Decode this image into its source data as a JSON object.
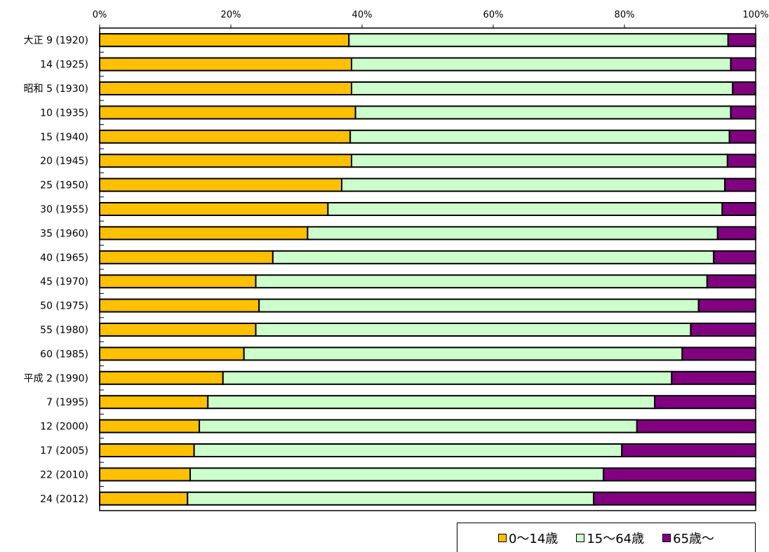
{
  "chart_data": {
    "type": "bar",
    "orientation": "horizontal",
    "stacked": "percent",
    "xlim": [
      0,
      100
    ],
    "x_ticks": [
      "0%",
      "20%",
      "40%",
      "60%",
      "80%",
      "100%"
    ],
    "categories": [
      "大正 9 (1920)",
      "14 (1925)",
      "昭和 5 (1930)",
      "10 (1935)",
      "15 (1940)",
      "20 (1945)",
      "25 (1950)",
      "30 (1955)",
      "35 (1960)",
      "40 (1965)",
      "45 (1970)",
      "50 (1975)",
      "55 (1980)",
      "60 (1985)",
      "平成 2 (1990)",
      "7 (1995)",
      "12 (2000)",
      "17 (2005)",
      "22 (2010)",
      "24 (2012)"
    ],
    "series": [
      {
        "name": "0～14歳",
        "color": "#FFC000",
        "values": [
          38.0,
          38.4,
          38.4,
          39.0,
          38.2,
          38.4,
          36.9,
          34.8,
          31.7,
          26.4,
          23.8,
          24.3,
          23.8,
          22.0,
          18.8,
          16.5,
          15.2,
          14.4,
          13.8,
          13.4
        ]
      },
      {
        "name": "15～64歳",
        "color": "#CCFFCC",
        "values": [
          57.8,
          57.8,
          58.1,
          57.2,
          57.8,
          57.3,
          58.4,
          60.1,
          62.5,
          67.2,
          68.8,
          67.0,
          66.3,
          66.8,
          68.4,
          68.1,
          66.7,
          65.2,
          63.0,
          61.9
        ]
      },
      {
        "name": "65歳～",
        "color": "#800080",
        "values": [
          4.2,
          3.8,
          3.5,
          3.8,
          4.0,
          4.3,
          4.7,
          5.1,
          5.8,
          6.4,
          7.4,
          8.7,
          9.9,
          11.2,
          12.8,
          15.4,
          18.1,
          20.4,
          23.2,
          24.7
        ]
      }
    ],
    "legend_placement": "bottom-right",
    "grid": false
  }
}
